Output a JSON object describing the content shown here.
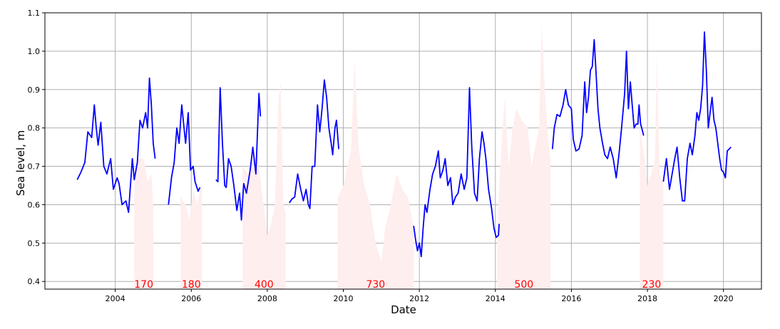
{
  "chart_data": {
    "type": "line",
    "xlabel": "Date",
    "ylabel": "Sea level, m",
    "xlim": [
      2002.15,
      2021.0
    ],
    "ylim": [
      0.38,
      1.1
    ],
    "xticks": [
      "2004",
      "2006",
      "2008",
      "2010",
      "2012",
      "2014",
      "2016",
      "2018",
      "2020"
    ],
    "yticks": [
      "0.4",
      "0.5",
      "0.6",
      "0.7",
      "0.8",
      "0.9",
      "1.0",
      "1.1"
    ],
    "grid": true,
    "colors": {
      "line": "#0000ff",
      "gap_fill": "#ffeeee",
      "gap_label": "#ff0000"
    },
    "series": [
      {
        "segments": [
          [
            [
              2003.0,
              0.665
            ],
            [
              2003.1,
              0.685
            ],
            [
              2003.2,
              0.71
            ],
            [
              2003.28,
              0.79
            ],
            [
              2003.38,
              0.775
            ],
            [
              2003.45,
              0.86
            ],
            [
              2003.5,
              0.8
            ],
            [
              2003.55,
              0.755
            ],
            [
              2003.62,
              0.815
            ],
            [
              2003.7,
              0.7
            ],
            [
              2003.78,
              0.68
            ],
            [
              2003.88,
              0.72
            ],
            [
              2003.95,
              0.64
            ],
            [
              2004.05,
              0.67
            ],
            [
              2004.1,
              0.655
            ],
            [
              2004.18,
              0.6
            ],
            [
              2004.28,
              0.61
            ],
            [
              2004.35,
              0.58
            ],
            [
              2004.45,
              0.72
            ],
            [
              2004.5,
              0.665
            ],
            [
              2004.58,
              0.71
            ],
            [
              2004.65,
              0.82
            ],
            [
              2004.72,
              0.8
            ],
            [
              2004.8,
              0.84
            ],
            [
              2004.85,
              0.8
            ],
            [
              2004.9,
              0.93
            ],
            [
              2004.95,
              0.86
            ],
            [
              2005.0,
              0.76
            ],
            [
              2005.05,
              0.72
            ]
          ],
          [
            [
              2005.4,
              0.6
            ],
            [
              2005.48,
              0.67
            ],
            [
              2005.55,
              0.71
            ],
            [
              2005.62,
              0.8
            ],
            [
              2005.68,
              0.76
            ],
            [
              2005.75,
              0.86
            ],
            [
              2005.8,
              0.81
            ],
            [
              2005.85,
              0.76
            ],
            [
              2005.92,
              0.84
            ],
            [
              2005.98,
              0.69
            ],
            [
              2006.05,
              0.7
            ],
            [
              2006.1,
              0.66
            ],
            [
              2006.18,
              0.635
            ],
            [
              2006.23,
              0.645
            ]
          ],
          [
            [
              2006.65,
              0.665
            ],
            [
              2006.7,
              0.66
            ],
            [
              2006.76,
              0.905
            ],
            [
              2006.82,
              0.76
            ],
            [
              2006.88,
              0.65
            ],
            [
              2006.92,
              0.645
            ],
            [
              2006.98,
              0.72
            ],
            [
              2007.05,
              0.7
            ],
            [
              2007.12,
              0.65
            ],
            [
              2007.2,
              0.585
            ],
            [
              2007.27,
              0.63
            ],
            [
              2007.32,
              0.56
            ],
            [
              2007.38,
              0.655
            ],
            [
              2007.45,
              0.63
            ],
            [
              2007.55,
              0.69
            ],
            [
              2007.62,
              0.75
            ],
            [
              2007.7,
              0.68
            ],
            [
              2007.78,
              0.89
            ],
            [
              2007.82,
              0.83
            ]
          ],
          [
            [
              2008.58,
              0.605
            ],
            [
              2008.65,
              0.615
            ],
            [
              2008.72,
              0.62
            ],
            [
              2008.8,
              0.68
            ],
            [
              2008.88,
              0.64
            ],
            [
              2008.95,
              0.61
            ],
            [
              2009.02,
              0.64
            ],
            [
              2009.08,
              0.6
            ],
            [
              2009.12,
              0.59
            ],
            [
              2009.18,
              0.7
            ],
            [
              2009.25,
              0.7
            ],
            [
              2009.32,
              0.86
            ],
            [
              2009.38,
              0.79
            ],
            [
              2009.44,
              0.85
            ],
            [
              2009.5,
              0.925
            ],
            [
              2009.56,
              0.88
            ],
            [
              2009.62,
              0.8
            ],
            [
              2009.68,
              0.76
            ],
            [
              2009.72,
              0.73
            ],
            [
              2009.78,
              0.8
            ],
            [
              2009.82,
              0.82
            ],
            [
              2009.88,
              0.745
            ]
          ],
          [
            [
              2011.85,
              0.545
            ],
            [
              2011.9,
              0.51
            ],
            [
              2011.95,
              0.48
            ],
            [
              2012.0,
              0.5
            ],
            [
              2012.05,
              0.465
            ],
            [
              2012.1,
              0.54
            ],
            [
              2012.15,
              0.6
            ],
            [
              2012.2,
              0.58
            ],
            [
              2012.28,
              0.64
            ],
            [
              2012.35,
              0.68
            ],
            [
              2012.42,
              0.7
            ],
            [
              2012.5,
              0.74
            ],
            [
              2012.55,
              0.67
            ],
            [
              2012.62,
              0.69
            ],
            [
              2012.68,
              0.72
            ],
            [
              2012.75,
              0.65
            ],
            [
              2012.82,
              0.67
            ],
            [
              2012.88,
              0.6
            ],
            [
              2012.95,
              0.62
            ],
            [
              2013.02,
              0.63
            ],
            [
              2013.1,
              0.68
            ],
            [
              2013.18,
              0.64
            ],
            [
              2013.25,
              0.67
            ],
            [
              2013.32,
              0.905
            ],
            [
              2013.38,
              0.75
            ],
            [
              2013.45,
              0.63
            ],
            [
              2013.52,
              0.61
            ],
            [
              2013.58,
              0.72
            ],
            [
              2013.65,
              0.79
            ],
            [
              2013.7,
              0.76
            ],
            [
              2013.75,
              0.72
            ],
            [
              2013.82,
              0.64
            ],
            [
              2013.9,
              0.59
            ],
            [
              2013.96,
              0.54
            ],
            [
              2014.02,
              0.515
            ],
            [
              2014.08,
              0.52
            ],
            [
              2014.1,
              0.55
            ]
          ],
          [
            [
              2015.5,
              0.745
            ],
            [
              2015.55,
              0.8
            ],
            [
              2015.62,
              0.835
            ],
            [
              2015.7,
              0.83
            ],
            [
              2015.78,
              0.86
            ],
            [
              2015.85,
              0.9
            ],
            [
              2015.92,
              0.86
            ],
            [
              2016.0,
              0.85
            ],
            [
              2016.05,
              0.77
            ],
            [
              2016.12,
              0.74
            ],
            [
              2016.2,
              0.745
            ],
            [
              2016.28,
              0.78
            ],
            [
              2016.35,
              0.92
            ],
            [
              2016.4,
              0.84
            ],
            [
              2016.45,
              0.88
            ],
            [
              2016.5,
              0.95
            ],
            [
              2016.55,
              0.96
            ],
            [
              2016.6,
              1.03
            ],
            [
              2016.65,
              0.94
            ],
            [
              2016.7,
              0.85
            ],
            [
              2016.75,
              0.8
            ],
            [
              2016.82,
              0.76
            ],
            [
              2016.88,
              0.73
            ],
            [
              2016.95,
              0.72
            ],
            [
              2017.02,
              0.75
            ],
            [
              2017.1,
              0.72
            ],
            [
              2017.18,
              0.67
            ],
            [
              2017.25,
              0.73
            ],
            [
              2017.32,
              0.8
            ],
            [
              2017.4,
              0.89
            ],
            [
              2017.45,
              1.0
            ],
            [
              2017.5,
              0.85
            ],
            [
              2017.55,
              0.92
            ],
            [
              2017.6,
              0.86
            ],
            [
              2017.65,
              0.8
            ],
            [
              2017.7,
              0.81
            ],
            [
              2017.75,
              0.81
            ],
            [
              2017.78,
              0.86
            ],
            [
              2017.82,
              0.81
            ],
            [
              2017.85,
              0.8
            ],
            [
              2017.9,
              0.78
            ]
          ],
          [
            [
              2018.42,
              0.66
            ],
            [
              2018.5,
              0.72
            ],
            [
              2018.58,
              0.64
            ],
            [
              2018.65,
              0.68
            ],
            [
              2018.72,
              0.72
            ],
            [
              2018.78,
              0.75
            ],
            [
              2018.85,
              0.67
            ],
            [
              2018.92,
              0.61
            ],
            [
              2018.98,
              0.61
            ],
            [
              2019.05,
              0.72
            ],
            [
              2019.12,
              0.76
            ],
            [
              2019.18,
              0.73
            ],
            [
              2019.25,
              0.78
            ],
            [
              2019.3,
              0.84
            ],
            [
              2019.35,
              0.82
            ],
            [
              2019.4,
              0.85
            ],
            [
              2019.45,
              0.91
            ],
            [
              2019.5,
              1.05
            ],
            [
              2019.55,
              0.95
            ],
            [
              2019.6,
              0.8
            ],
            [
              2019.65,
              0.84
            ],
            [
              2019.7,
              0.88
            ],
            [
              2019.75,
              0.82
            ],
            [
              2019.8,
              0.8
            ],
            [
              2019.85,
              0.76
            ],
            [
              2019.9,
              0.72
            ],
            [
              2019.95,
              0.69
            ],
            [
              2020.0,
              0.685
            ],
            [
              2020.05,
              0.67
            ],
            [
              2020.1,
              0.74
            ],
            [
              2020.15,
              0.745
            ],
            [
              2020.2,
              0.75
            ]
          ]
        ]
      }
    ],
    "gaps": [
      {
        "label": "170",
        "start": 2004.5,
        "end": 2005.0,
        "profile": [
          [
            2004.5,
            0.68
          ],
          [
            2004.6,
            0.72
          ],
          [
            2004.75,
            0.72
          ],
          [
            2004.85,
            0.66
          ],
          [
            2004.95,
            0.68
          ],
          [
            2005.0,
            0.6
          ]
        ]
      },
      {
        "label": "180",
        "start": 2005.72,
        "end": 2006.28,
        "profile": [
          [
            2005.72,
            0.62
          ],
          [
            2005.85,
            0.6
          ],
          [
            2005.95,
            0.56
          ],
          [
            2006.05,
            0.64
          ],
          [
            2006.15,
            0.6
          ],
          [
            2006.28,
            0.66
          ]
        ]
      },
      {
        "label": "400",
        "start": 2007.35,
        "end": 2008.48,
        "profile": [
          [
            2007.35,
            0.7
          ],
          [
            2007.5,
            0.68
          ],
          [
            2007.6,
            0.74
          ],
          [
            2007.75,
            0.72
          ],
          [
            2007.9,
            0.6
          ],
          [
            2008.0,
            0.52
          ],
          [
            2008.1,
            0.55
          ],
          [
            2008.2,
            0.6
          ],
          [
            2008.3,
            0.88
          ],
          [
            2008.35,
            0.92
          ],
          [
            2008.42,
            0.6
          ],
          [
            2008.48,
            0.58
          ]
        ]
      },
      {
        "label": "730",
        "start": 2009.85,
        "end": 2011.85,
        "profile": [
          [
            2009.85,
            0.62
          ],
          [
            2010.0,
            0.65
          ],
          [
            2010.1,
            0.7
          ],
          [
            2010.2,
            0.74
          ],
          [
            2010.3,
            0.98
          ],
          [
            2010.4,
            0.75
          ],
          [
            2010.55,
            0.65
          ],
          [
            2010.7,
            0.6
          ],
          [
            2010.85,
            0.5
          ],
          [
            2011.0,
            0.45
          ],
          [
            2011.1,
            0.54
          ],
          [
            2011.25,
            0.6
          ],
          [
            2011.4,
            0.68
          ],
          [
            2011.55,
            0.64
          ],
          [
            2011.7,
            0.62
          ],
          [
            2011.85,
            0.54
          ]
        ]
      },
      {
        "label": "500",
        "start": 2014.05,
        "end": 2015.45,
        "profile": [
          [
            2014.05,
            0.54
          ],
          [
            2014.15,
            0.74
          ],
          [
            2014.25,
            0.88
          ],
          [
            2014.35,
            0.7
          ],
          [
            2014.45,
            0.8
          ],
          [
            2014.55,
            0.85
          ],
          [
            2014.7,
            0.82
          ],
          [
            2014.85,
            0.8
          ],
          [
            2014.95,
            0.7
          ],
          [
            2015.05,
            0.75
          ],
          [
            2015.15,
            0.8
          ],
          [
            2015.22,
            1.07
          ],
          [
            2015.3,
            0.9
          ],
          [
            2015.38,
            0.78
          ],
          [
            2015.45,
            0.72
          ]
        ]
      },
      {
        "label": "230",
        "start": 2017.8,
        "end": 2018.42,
        "profile": [
          [
            2017.8,
            0.8
          ],
          [
            2017.9,
            0.74
          ],
          [
            2018.0,
            0.65
          ],
          [
            2018.1,
            0.68
          ],
          [
            2018.2,
            0.72
          ],
          [
            2018.25,
            0.99
          ],
          [
            2018.32,
            0.68
          ],
          [
            2018.42,
            0.66
          ]
        ]
      }
    ]
  }
}
